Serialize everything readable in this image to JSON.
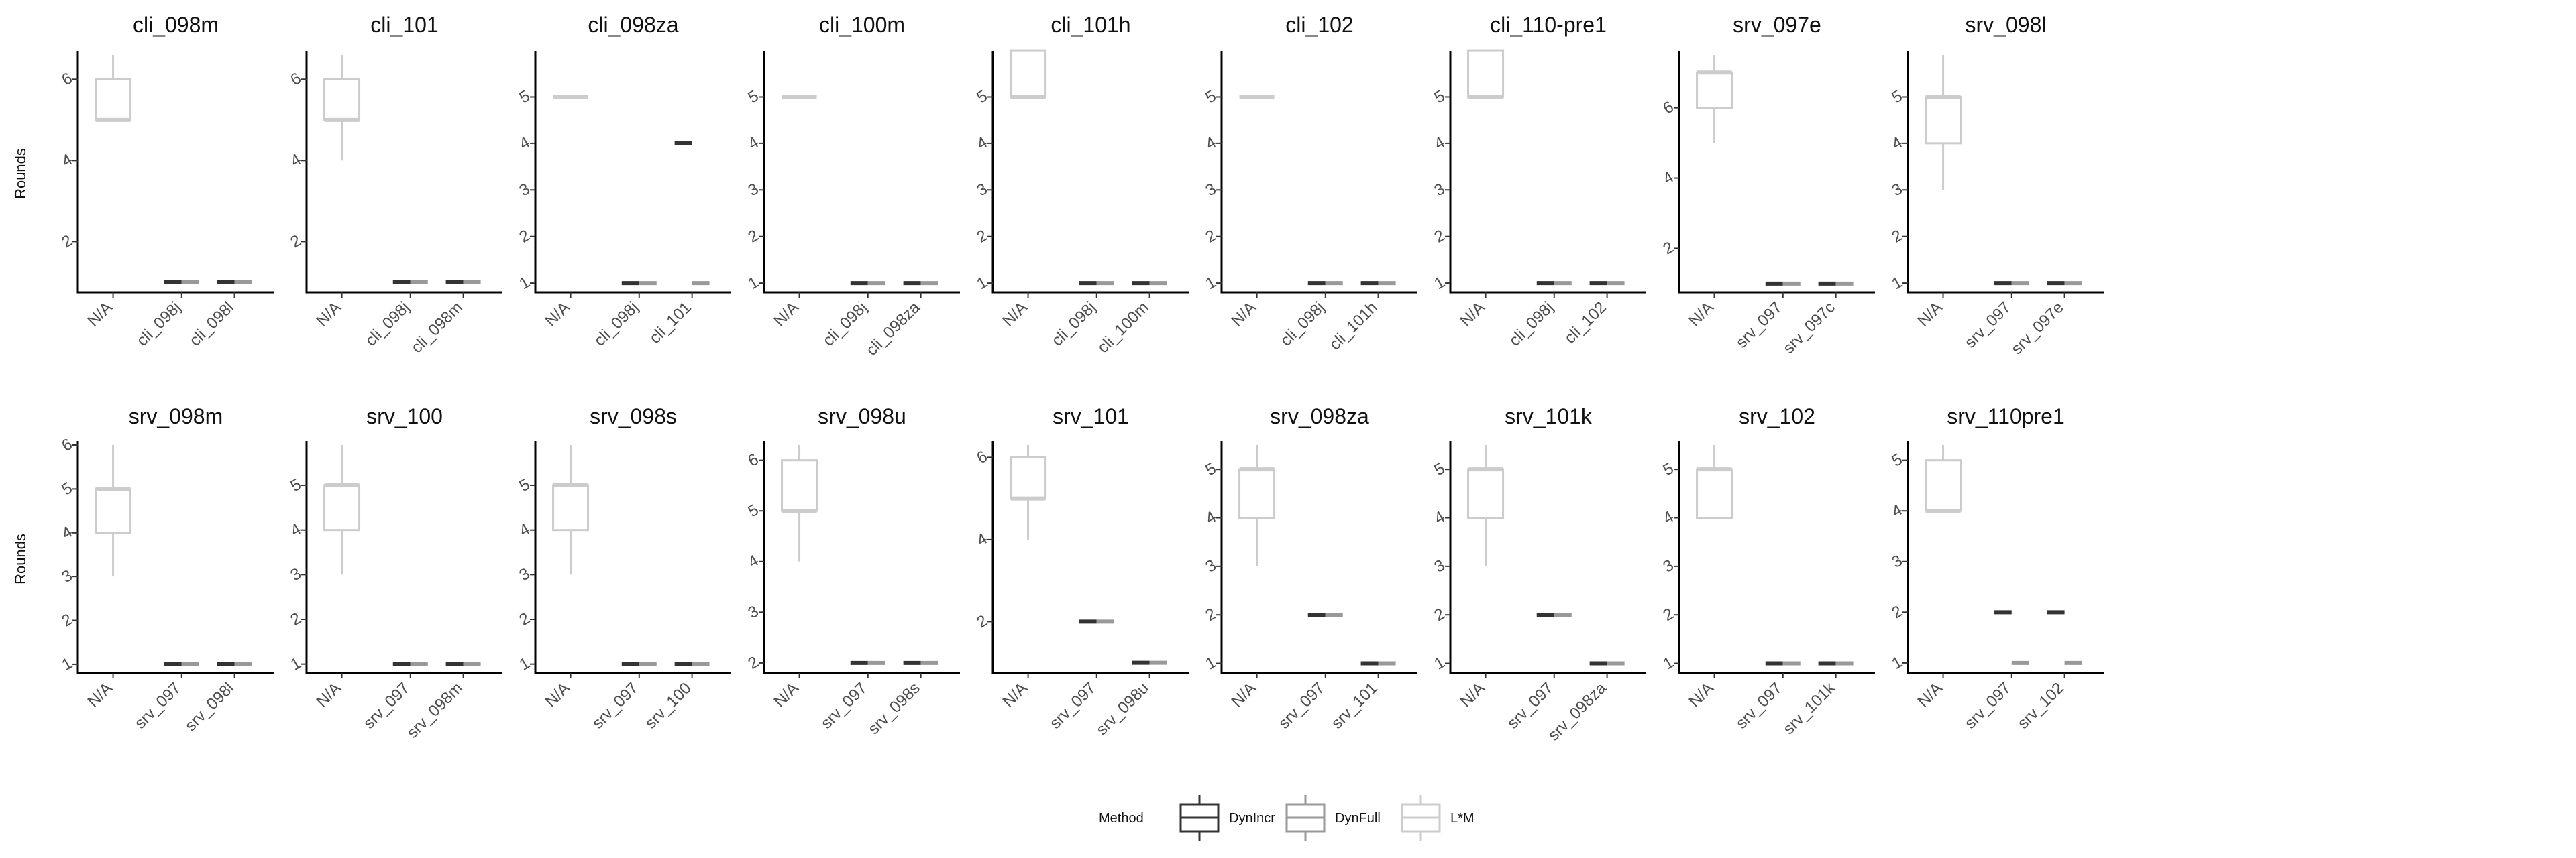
{
  "chart_data": {
    "type": "box",
    "layout": {
      "rows": 2,
      "cols": 9
    },
    "ylabel": "Rounds",
    "legend": {
      "title": "Method",
      "placement": "bottom",
      "entries": [
        {
          "name": "DynIncr",
          "color": "#333333"
        },
        {
          "name": "DynFull",
          "color": "#999999"
        },
        {
          "name": "L*M",
          "color": "#cccccc"
        }
      ]
    },
    "panels": [
      {
        "title": "cli_098m",
        "categories": [
          "N/A",
          "cli_098j",
          "cli_098l"
        ],
        "ylim": [
          0.75,
          6.6
        ],
        "yticks": [
          2,
          4,
          6
        ],
        "boxes": [
          {
            "x": 0,
            "method": "L*M",
            "q1": 5,
            "median": 5,
            "q3": 6,
            "min": 5,
            "max": 6.6
          },
          {
            "x": 1,
            "method": "DynIncr",
            "median": 1
          },
          {
            "x": 1,
            "method": "DynFull",
            "median": 1
          },
          {
            "x": 2,
            "method": "DynIncr",
            "median": 1
          },
          {
            "x": 2,
            "method": "DynFull",
            "median": 1
          }
        ]
      },
      {
        "title": "cli_101",
        "categories": [
          "N/A",
          "cli_098j",
          "cli_098m"
        ],
        "ylim": [
          0.75,
          6.6
        ],
        "yticks": [
          2,
          4,
          6
        ],
        "boxes": [
          {
            "x": 0,
            "method": "L*M",
            "q1": 5,
            "median": 5,
            "q3": 6,
            "min": 4,
            "max": 6.6
          },
          {
            "x": 1,
            "method": "DynIncr",
            "median": 1
          },
          {
            "x": 1,
            "method": "DynFull",
            "median": 1
          },
          {
            "x": 2,
            "method": "DynIncr",
            "median": 1
          },
          {
            "x": 2,
            "method": "DynFull",
            "median": 1
          }
        ]
      },
      {
        "title": "cli_098za",
        "categories": [
          "N/A",
          "cli_098j",
          "cli_101"
        ],
        "ylim": [
          0.8,
          5.9
        ],
        "yticks": [
          1,
          2,
          3,
          4,
          5
        ],
        "boxes": [
          {
            "x": 0,
            "method": "L*M",
            "q1": 5,
            "median": 5,
            "q3": 5,
            "min": 5,
            "max": 5
          },
          {
            "x": 1,
            "method": "DynIncr",
            "median": 1
          },
          {
            "x": 1,
            "method": "DynFull",
            "median": 1
          },
          {
            "x": 2,
            "method": "DynIncr",
            "median": 4
          },
          {
            "x": 2,
            "method": "DynFull",
            "median": 1
          }
        ]
      },
      {
        "title": "cli_100m",
        "categories": [
          "N/A",
          "cli_098j",
          "cli_098za"
        ],
        "ylim": [
          0.8,
          5.9
        ],
        "yticks": [
          1,
          2,
          3,
          4,
          5
        ],
        "boxes": [
          {
            "x": 0,
            "method": "L*M",
            "q1": 5,
            "median": 5,
            "q3": 5,
            "min": 5,
            "max": 5
          },
          {
            "x": 1,
            "method": "DynIncr",
            "median": 1
          },
          {
            "x": 1,
            "method": "DynFull",
            "median": 1
          },
          {
            "x": 2,
            "method": "DynIncr",
            "median": 1
          },
          {
            "x": 2,
            "method": "DynFull",
            "median": 1
          }
        ]
      },
      {
        "title": "cli_101h",
        "categories": [
          "N/A",
          "cli_098j",
          "cli_100m"
        ],
        "ylim": [
          0.8,
          5.9
        ],
        "yticks": [
          1,
          2,
          3,
          4,
          5
        ],
        "boxes": [
          {
            "x": 0,
            "method": "L*M",
            "q1": 5,
            "median": 5,
            "q3": 6,
            "min": 5,
            "max": 6
          },
          {
            "x": 1,
            "method": "DynIncr",
            "median": 1
          },
          {
            "x": 1,
            "method": "DynFull",
            "median": 1
          },
          {
            "x": 2,
            "method": "DynIncr",
            "median": 1
          },
          {
            "x": 2,
            "method": "DynFull",
            "median": 1
          }
        ]
      },
      {
        "title": "cli_102",
        "categories": [
          "N/A",
          "cli_098j",
          "cli_101h"
        ],
        "ylim": [
          0.8,
          5.9
        ],
        "yticks": [
          1,
          2,
          3,
          4,
          5
        ],
        "boxes": [
          {
            "x": 0,
            "method": "L*M",
            "q1": 5,
            "median": 5,
            "q3": 5,
            "min": 5,
            "max": 5
          },
          {
            "x": 1,
            "method": "DynIncr",
            "median": 1
          },
          {
            "x": 1,
            "method": "DynFull",
            "median": 1
          },
          {
            "x": 2,
            "method": "DynIncr",
            "median": 1
          },
          {
            "x": 2,
            "method": "DynFull",
            "median": 1
          }
        ]
      },
      {
        "title": "cli_110-pre1",
        "categories": [
          "N/A",
          "cli_098j",
          "cli_102"
        ],
        "ylim": [
          0.8,
          5.9
        ],
        "yticks": [
          1,
          2,
          3,
          4,
          5
        ],
        "boxes": [
          {
            "x": 0,
            "method": "L*M",
            "q1": 5,
            "median": 5,
            "q3": 6,
            "min": 5,
            "max": 6
          },
          {
            "x": 1,
            "method": "DynIncr",
            "median": 1
          },
          {
            "x": 1,
            "method": "DynFull",
            "median": 1
          },
          {
            "x": 2,
            "method": "DynIncr",
            "median": 1
          },
          {
            "x": 2,
            "method": "DynFull",
            "median": 1
          }
        ]
      },
      {
        "title": "srv_097e",
        "categories": [
          "N/A",
          "srv_097",
          "srv_097c"
        ],
        "ylim": [
          0.75,
          7.5
        ],
        "yticks": [
          2,
          4,
          6
        ],
        "boxes": [
          {
            "x": 0,
            "method": "L*M",
            "q1": 6,
            "median": 7,
            "q3": 7,
            "min": 5,
            "max": 7.5
          },
          {
            "x": 1,
            "method": "DynIncr",
            "median": 1
          },
          {
            "x": 1,
            "method": "DynFull",
            "median": 1
          },
          {
            "x": 2,
            "method": "DynIncr",
            "median": 1
          },
          {
            "x": 2,
            "method": "DynFull",
            "median": 1
          }
        ]
      },
      {
        "title": "srv_098l",
        "categories": [
          "N/A",
          "srv_097",
          "srv_097e"
        ],
        "ylim": [
          0.8,
          5.9
        ],
        "yticks": [
          1,
          2,
          3,
          4,
          5
        ],
        "boxes": [
          {
            "x": 0,
            "method": "L*M",
            "q1": 4,
            "median": 5,
            "q3": 5,
            "min": 3,
            "max": 5.9
          },
          {
            "x": 1,
            "method": "DynIncr",
            "median": 1
          },
          {
            "x": 1,
            "method": "DynFull",
            "median": 1
          },
          {
            "x": 2,
            "method": "DynIncr",
            "median": 1
          },
          {
            "x": 2,
            "method": "DynFull",
            "median": 1
          }
        ]
      },
      {
        "title": "srv_098m",
        "categories": [
          "N/A",
          "srv_097",
          "srv_098l"
        ],
        "ylim": [
          0.8,
          6.0
        ],
        "yticks": [
          1,
          2,
          3,
          4,
          5,
          6
        ],
        "boxes": [
          {
            "x": 0,
            "method": "L*M",
            "q1": 4,
            "median": 5,
            "q3": 5,
            "min": 3,
            "max": 6
          },
          {
            "x": 1,
            "method": "DynIncr",
            "median": 1
          },
          {
            "x": 1,
            "method": "DynFull",
            "median": 1
          },
          {
            "x": 2,
            "method": "DynIncr",
            "median": 1
          },
          {
            "x": 2,
            "method": "DynFull",
            "median": 1
          }
        ]
      },
      {
        "title": "srv_100",
        "categories": [
          "N/A",
          "srv_097",
          "srv_098m"
        ],
        "ylim": [
          0.8,
          5.9
        ],
        "yticks": [
          1,
          2,
          3,
          4,
          5
        ],
        "boxes": [
          {
            "x": 0,
            "method": "L*M",
            "q1": 4,
            "median": 5,
            "q3": 5,
            "min": 3,
            "max": 5.9
          },
          {
            "x": 1,
            "method": "DynIncr",
            "median": 1
          },
          {
            "x": 1,
            "method": "DynFull",
            "median": 1
          },
          {
            "x": 2,
            "method": "DynIncr",
            "median": 1
          },
          {
            "x": 2,
            "method": "DynFull",
            "median": 1
          }
        ]
      },
      {
        "title": "srv_098s",
        "categories": [
          "N/A",
          "srv_097",
          "srv_100"
        ],
        "ylim": [
          0.8,
          5.9
        ],
        "yticks": [
          1,
          2,
          3,
          4,
          5
        ],
        "boxes": [
          {
            "x": 0,
            "method": "L*M",
            "q1": 4,
            "median": 5,
            "q3": 5,
            "min": 3,
            "max": 5.9
          },
          {
            "x": 1,
            "method": "DynIncr",
            "median": 1
          },
          {
            "x": 1,
            "method": "DynFull",
            "median": 1
          },
          {
            "x": 2,
            "method": "DynIncr",
            "median": 1
          },
          {
            "x": 2,
            "method": "DynFull",
            "median": 1
          }
        ]
      },
      {
        "title": "srv_098u",
        "categories": [
          "N/A",
          "srv_097",
          "srv_098s"
        ],
        "ylim": [
          1.8,
          6.3
        ],
        "yticks": [
          2,
          3,
          4,
          5,
          6
        ],
        "boxes": [
          {
            "x": 0,
            "method": "L*M",
            "q1": 5,
            "median": 5,
            "q3": 6,
            "min": 4,
            "max": 6.3
          },
          {
            "x": 1,
            "method": "DynIncr",
            "median": 2
          },
          {
            "x": 1,
            "method": "DynFull",
            "median": 2
          },
          {
            "x": 2,
            "method": "DynIncr",
            "median": 2
          },
          {
            "x": 2,
            "method": "DynFull",
            "median": 2
          }
        ]
      },
      {
        "title": "srv_101",
        "categories": [
          "N/A",
          "srv_097",
          "srv_098u"
        ],
        "ylim": [
          0.75,
          6.3
        ],
        "yticks": [
          2,
          4,
          6
        ],
        "boxes": [
          {
            "x": 0,
            "method": "L*M",
            "q1": 5,
            "median": 5,
            "q3": 6,
            "min": 4,
            "max": 6.3
          },
          {
            "x": 1,
            "method": "DynIncr",
            "median": 2
          },
          {
            "x": 1,
            "method": "DynFull",
            "median": 2
          },
          {
            "x": 2,
            "method": "DynIncr",
            "median": 1
          },
          {
            "x": 2,
            "method": "DynFull",
            "median": 1
          }
        ]
      },
      {
        "title": "srv_098za",
        "categories": [
          "N/A",
          "srv_097",
          "srv_101"
        ],
        "ylim": [
          0.8,
          5.5
        ],
        "yticks": [
          1,
          2,
          3,
          4,
          5
        ],
        "boxes": [
          {
            "x": 0,
            "method": "L*M",
            "q1": 4,
            "median": 5,
            "q3": 5,
            "min": 3,
            "max": 5.5
          },
          {
            "x": 1,
            "method": "DynIncr",
            "median": 2
          },
          {
            "x": 1,
            "method": "DynFull",
            "median": 2
          },
          {
            "x": 2,
            "method": "DynIncr",
            "median": 1
          },
          {
            "x": 2,
            "method": "DynFull",
            "median": 1
          }
        ]
      },
      {
        "title": "srv_101k",
        "categories": [
          "N/A",
          "srv_097",
          "srv_098za"
        ],
        "ylim": [
          0.8,
          5.5
        ],
        "yticks": [
          1,
          2,
          3,
          4,
          5
        ],
        "boxes": [
          {
            "x": 0,
            "method": "L*M",
            "q1": 4,
            "median": 5,
            "q3": 5,
            "min": 3,
            "max": 5.5
          },
          {
            "x": 1,
            "method": "DynIncr",
            "median": 2
          },
          {
            "x": 1,
            "method": "DynFull",
            "median": 2
          },
          {
            "x": 2,
            "method": "DynIncr",
            "median": 1
          },
          {
            "x": 2,
            "method": "DynFull",
            "median": 1
          }
        ]
      },
      {
        "title": "srv_102",
        "categories": [
          "N/A",
          "srv_097",
          "srv_101k"
        ],
        "ylim": [
          0.8,
          5.5
        ],
        "yticks": [
          1,
          2,
          3,
          4,
          5
        ],
        "boxes": [
          {
            "x": 0,
            "method": "L*M",
            "q1": 4,
            "median": 5,
            "q3": 5,
            "min": 4,
            "max": 5.5
          },
          {
            "x": 1,
            "method": "DynIncr",
            "median": 1
          },
          {
            "x": 1,
            "method": "DynFull",
            "median": 1
          },
          {
            "x": 2,
            "method": "DynIncr",
            "median": 1
          },
          {
            "x": 2,
            "method": "DynFull",
            "median": 1
          }
        ]
      },
      {
        "title": "srv_110pre1",
        "categories": [
          "N/A",
          "srv_097",
          "srv_102"
        ],
        "ylim": [
          0.8,
          5.3
        ],
        "yticks": [
          1,
          2,
          3,
          4,
          5
        ],
        "boxes": [
          {
            "x": 0,
            "method": "L*M",
            "q1": 4,
            "median": 4,
            "q3": 5,
            "min": 4,
            "max": 5.3
          },
          {
            "x": 1,
            "method": "DynIncr",
            "median": 2
          },
          {
            "x": 1,
            "method": "DynFull",
            "median": 1
          },
          {
            "x": 2,
            "method": "DynIncr",
            "median": 2
          },
          {
            "x": 2,
            "method": "DynFull",
            "median": 1
          }
        ]
      }
    ]
  }
}
